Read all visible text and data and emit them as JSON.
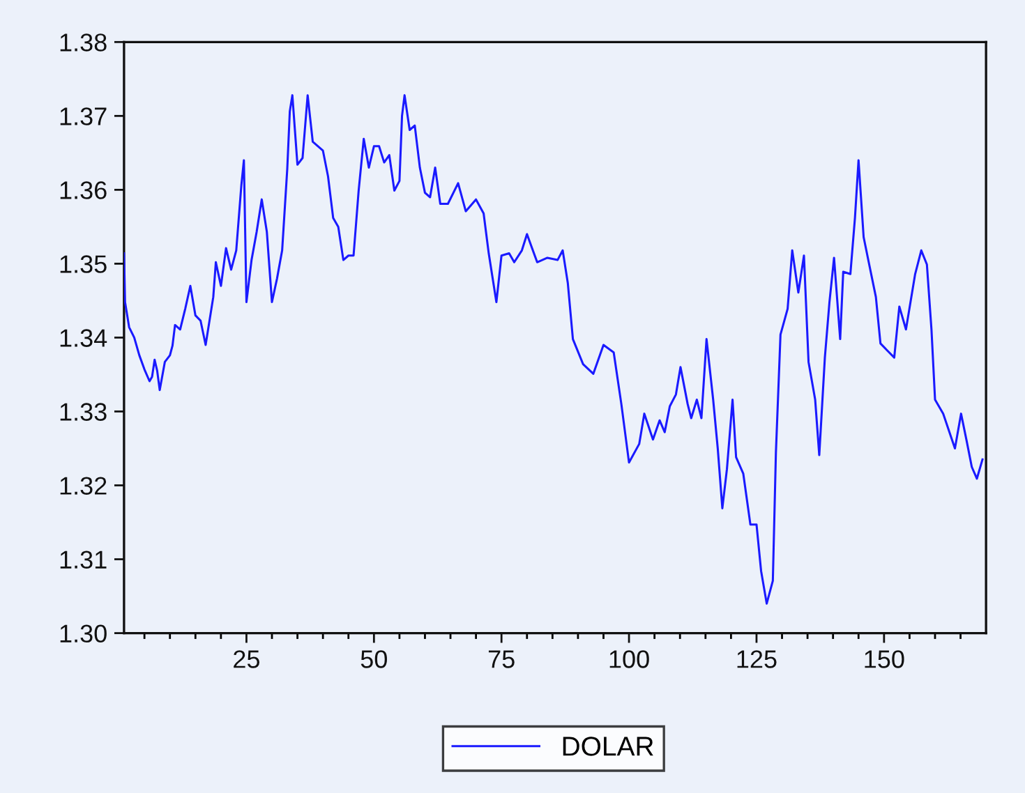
{
  "chart_data": {
    "type": "line",
    "x": [
      1,
      1.2,
      2,
      3,
      4,
      5,
      6,
      6.5,
      7,
      7.5,
      8,
      9,
      10,
      10.5,
      11,
      12,
      13,
      14,
      15,
      16,
      17,
      18.5,
      19,
      20,
      21,
      22,
      23,
      24,
      24.5,
      25,
      26,
      27,
      28,
      29,
      30,
      31,
      32,
      33,
      33.5,
      34,
      35,
      36,
      37,
      38,
      40,
      41,
      42,
      43,
      44,
      45,
      46,
      47,
      48,
      49,
      50,
      51,
      52,
      53,
      54,
      55,
      55.5,
      56,
      57,
      58,
      59,
      60,
      61,
      62,
      63,
      64.5,
      66.5,
      68,
      70,
      71.5,
      72.5,
      74,
      75,
      76.5,
      77.5,
      79,
      80,
      82,
      84,
      86,
      87,
      88,
      89,
      91,
      93,
      95,
      97,
      98.5,
      100,
      102,
      103,
      104.7,
      106,
      107,
      108,
      109.2,
      110.1,
      111.5,
      112.2,
      113.3,
      114.2,
      115.2,
      116.5,
      117.4,
      118.3,
      119.2,
      120.3,
      121,
      122.4,
      123.8,
      125,
      125.9,
      127,
      128.2,
      128.8,
      129.7,
      131.1,
      132,
      133.2,
      134.3,
      135.2,
      136.5,
      137.3,
      138.4,
      139.3,
      140.2,
      141.4,
      142,
      143.4,
      144.3,
      145,
      146,
      147,
      148.4,
      149.3,
      150.7,
      152,
      153,
      154.3,
      156.1,
      157.3,
      158.4,
      159.3,
      160,
      161.6,
      163.9,
      165.1,
      166.2,
      167.2,
      168.2,
      169.3
    ],
    "series": [
      {
        "name": "DOLAR",
        "color": "#1a1aff",
        "values": [
          1.3514,
          1.3448,
          1.3414,
          1.34,
          1.3376,
          1.3357,
          1.3341,
          1.3347,
          1.337,
          1.3355,
          1.3329,
          1.3367,
          1.3376,
          1.3389,
          1.3417,
          1.3411,
          1.3439,
          1.347,
          1.343,
          1.3423,
          1.339,
          1.3455,
          1.3502,
          1.347,
          1.3521,
          1.3492,
          1.3518,
          1.3606,
          1.364,
          1.3448,
          1.3505,
          1.3543,
          1.3587,
          1.3543,
          1.3448,
          1.348,
          1.3518,
          1.3628,
          1.3706,
          1.3728,
          1.3634,
          1.3643,
          1.3728,
          1.3665,
          1.3653,
          1.3618,
          1.3562,
          1.355,
          1.3505,
          1.3511,
          1.3511,
          1.3599,
          1.3669,
          1.363,
          1.3659,
          1.3659,
          1.3637,
          1.3647,
          1.3599,
          1.3612,
          1.37,
          1.3728,
          1.3681,
          1.3687,
          1.363,
          1.3596,
          1.359,
          1.363,
          1.3581,
          1.3581,
          1.3609,
          1.3571,
          1.3587,
          1.3568,
          1.3514,
          1.3448,
          1.3511,
          1.3514,
          1.3502,
          1.3518,
          1.354,
          1.3502,
          1.3508,
          1.3505,
          1.3518,
          1.3474,
          1.3398,
          1.3364,
          1.3351,
          1.339,
          1.338,
          1.331,
          1.3231,
          1.3256,
          1.3297,
          1.3262,
          1.3288,
          1.3272,
          1.3307,
          1.3323,
          1.336,
          1.331,
          1.3291,
          1.3316,
          1.3291,
          1.3398,
          1.3316,
          1.325,
          1.3169,
          1.3222,
          1.3316,
          1.3238,
          1.3216,
          1.3147,
          1.3147,
          1.3084,
          1.304,
          1.3071,
          1.3244,
          1.3404,
          1.3439,
          1.3518,
          1.3461,
          1.3511,
          1.3367,
          1.3316,
          1.3241,
          1.3373,
          1.3448,
          1.3508,
          1.3398,
          1.3489,
          1.3486,
          1.3562,
          1.364,
          1.3536,
          1.3502,
          1.3455,
          1.3392,
          1.3382,
          1.3373,
          1.3442,
          1.3411,
          1.3486,
          1.3518,
          1.3499,
          1.3411,
          1.3316,
          1.3297,
          1.325,
          1.3297,
          1.326,
          1.3225,
          1.3209,
          1.3235
        ]
      }
    ],
    "xlim": [
      1,
      170
    ],
    "xticks": [
      {
        "value": 5,
        "label": null
      },
      {
        "value": 10,
        "label": null
      },
      {
        "value": 15,
        "label": null
      },
      {
        "value": 20,
        "label": null
      },
      25,
      {
        "value": 30,
        "label": null
      },
      {
        "value": 35,
        "label": null
      },
      {
        "value": 40,
        "label": null
      },
      {
        "value": 45,
        "label": null
      },
      50,
      {
        "value": 55,
        "label": null
      },
      {
        "value": 60,
        "label": null
      },
      {
        "value": 65,
        "label": null
      },
      {
        "value": 70,
        "label": null
      },
      75,
      {
        "value": 80,
        "label": null
      },
      {
        "value": 85,
        "label": null
      },
      {
        "value": 90,
        "label": null
      },
      {
        "value": 95,
        "label": null
      },
      100,
      {
        "value": 105,
        "label": null
      },
      {
        "value": 110,
        "label": null
      },
      {
        "value": 115,
        "label": null
      },
      {
        "value": 120,
        "label": null
      },
      125,
      {
        "value": 130,
        "label": null
      },
      {
        "value": 135,
        "label": null
      },
      {
        "value": 140,
        "label": null
      },
      {
        "value": 145,
        "label": null
      },
      150,
      {
        "value": 155,
        "label": null
      },
      {
        "value": 160,
        "label": null
      },
      {
        "value": 165,
        "label": null
      }
    ],
    "ylim": [
      1.3,
      1.38
    ],
    "yticks": [
      {
        "value": 1.3,
        "label": "1.30"
      },
      {
        "value": 1.31,
        "label": "1.31"
      },
      {
        "value": 1.32,
        "label": "1.32"
      },
      {
        "value": 1.33,
        "label": "1.33"
      },
      {
        "value": 1.34,
        "label": "1.34"
      },
      {
        "value": 1.35,
        "label": "1.35"
      },
      {
        "value": 1.36,
        "label": "1.36"
      },
      {
        "value": 1.37,
        "label": "1.37"
      },
      {
        "value": 1.38,
        "label": "1.38"
      }
    ],
    "grid": false,
    "legend": "bottom",
    "line_style": "solid"
  }
}
